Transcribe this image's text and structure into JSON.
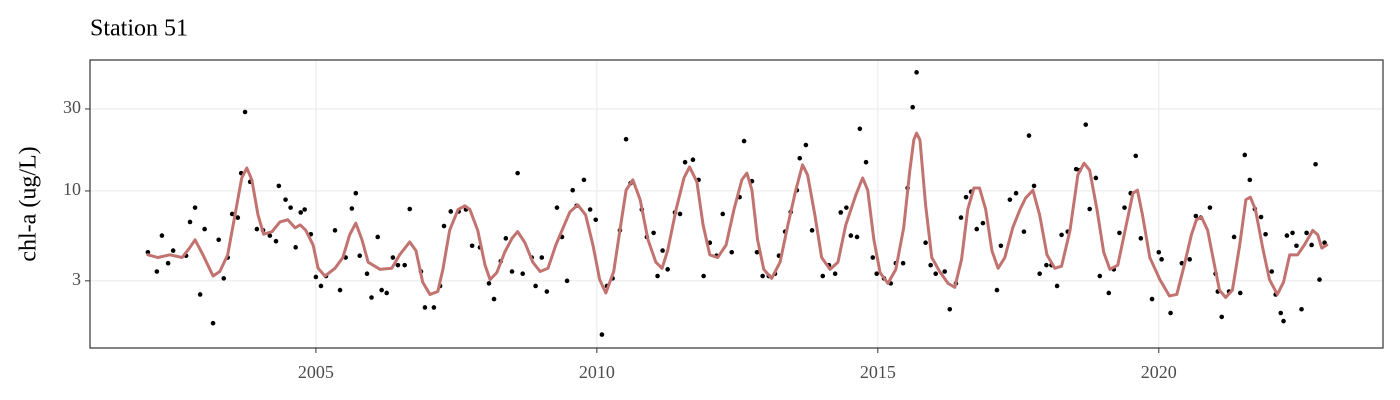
{
  "chart_data": {
    "type": "scatter",
    "title": "Station 51",
    "y_label": "chl-a (ug/L)",
    "xlim": [
      2000.98,
      2023.99
    ],
    "xticks": [
      2005,
      2010,
      2015,
      2020
    ],
    "ylim": [
      1.22,
      57.8
    ],
    "yticks": [
      3,
      10,
      30
    ],
    "y_log": true,
    "grid": true,
    "points": {
      "color": "#000000",
      "x": [
        2002.01,
        2002.17,
        2002.26,
        2002.37,
        2002.46,
        2002.69,
        2002.76,
        2002.85,
        2002.94,
        2003.02,
        2003.17,
        2003.27,
        2003.36,
        2003.43,
        2003.51,
        2003.61,
        2003.67,
        2003.74,
        2003.83,
        2003.95,
        2004.06,
        2004.18,
        2004.29,
        2004.34,
        2004.46,
        2004.55,
        2004.64,
        2004.73,
        2004.8,
        2004.91,
        2005.0,
        2005.09,
        2005.18,
        2005.34,
        2005.43,
        2005.53,
        2005.64,
        2005.71,
        2005.78,
        2005.91,
        2005.99,
        2006.1,
        2006.17,
        2006.26,
        2006.37,
        2006.46,
        2006.58,
        2006.67,
        2006.87,
        2006.94,
        2007.1,
        2007.21,
        2007.28,
        2007.4,
        2007.54,
        2007.67,
        2007.78,
        2007.92,
        2008.08,
        2008.17,
        2008.29,
        2008.38,
        2008.49,
        2008.59,
        2008.68,
        2008.84,
        2008.91,
        2009.02,
        2009.11,
        2009.29,
        2009.38,
        2009.47,
        2009.57,
        2009.64,
        2009.77,
        2009.88,
        2009.98,
        2010.09,
        2010.18,
        2010.28,
        2010.41,
        2010.52,
        2010.6,
        2010.8,
        2010.89,
        2011.01,
        2011.08,
        2011.17,
        2011.26,
        2011.39,
        2011.48,
        2011.57,
        2011.71,
        2011.81,
        2011.9,
        2012.01,
        2012.13,
        2012.24,
        2012.4,
        2012.54,
        2012.62,
        2012.76,
        2012.85,
        2012.95,
        2013.06,
        2013.17,
        2013.24,
        2013.35,
        2013.45,
        2013.56,
        2013.61,
        2013.72,
        2013.83,
        2014.02,
        2014.13,
        2014.24,
        2014.34,
        2014.44,
        2014.52,
        2014.63,
        2014.68,
        2014.79,
        2014.91,
        2014.98,
        2015.11,
        2015.23,
        2015.32,
        2015.45,
        2015.53,
        2015.62,
        2015.69,
        2015.85,
        2015.94,
        2016.03,
        2016.19,
        2016.28,
        2016.39,
        2016.48,
        2016.57,
        2016.66,
        2016.76,
        2016.87,
        2017.12,
        2017.19,
        2017.35,
        2017.46,
        2017.6,
        2017.69,
        2017.78,
        2017.88,
        2018.0,
        2018.09,
        2018.19,
        2018.27,
        2018.38,
        2018.53,
        2018.59,
        2018.7,
        2018.77,
        2018.88,
        2018.95,
        2019.11,
        2019.2,
        2019.3,
        2019.39,
        2019.5,
        2019.59,
        2019.68,
        2019.88,
        2020.0,
        2020.05,
        2020.21,
        2020.41,
        2020.55,
        2020.66,
        2020.75,
        2020.91,
        2021.01,
        2021.05,
        2021.12,
        2021.25,
        2021.34,
        2021.45,
        2021.53,
        2021.62,
        2021.71,
        2021.82,
        2021.9,
        2022.01,
        2022.08,
        2022.17,
        2022.22,
        2022.28,
        2022.38,
        2022.45,
        2022.54,
        2022.63,
        2022.72,
        2022.79,
        2022.86,
        2022.95
      ],
      "values": [
        4.4,
        3.4,
        5.5,
        3.8,
        4.5,
        4.2,
        6.6,
        8.0,
        2.5,
        6.0,
        1.7,
        5.2,
        3.1,
        4.1,
        7.35,
        7.0,
        12.7,
        28.8,
        11.3,
        6.0,
        5.9,
        5.5,
        5.1,
        10.7,
        8.9,
        8.0,
        4.7,
        7.5,
        7.8,
        5.6,
        3.16,
        2.8,
        3.2,
        5.9,
        2.65,
        4.1,
        7.9,
        9.7,
        4.2,
        3.3,
        2.4,
        5.4,
        2.65,
        2.55,
        4.1,
        3.7,
        3.7,
        7.85,
        3.4,
        2.1,
        2.1,
        2.8,
        6.25,
        7.6,
        7.6,
        7.8,
        4.8,
        4.7,
        2.9,
        2.35,
        3.9,
        5.3,
        3.4,
        12.7,
        3.3,
        4.1,
        2.8,
        4.1,
        2.6,
        8.0,
        5.4,
        3.0,
        10.1,
        8.2,
        11.6,
        7.8,
        6.8,
        1.46,
        2.8,
        3.1,
        5.9,
        20,
        11.1,
        7.8,
        5.4,
        5.7,
        3.2,
        4.5,
        3.5,
        7.5,
        7.35,
        14.7,
        15.2,
        11.6,
        3.2,
        5.0,
        4.2,
        7.35,
        4.4,
        9.2,
        19.5,
        11.4,
        4.4,
        3.2,
        3.2,
        3.3,
        4.2,
        5.8,
        7.55,
        10.1,
        15.5,
        18.5,
        5.9,
        3.2,
        3.7,
        3.3,
        7.5,
        8.0,
        5.5,
        5.4,
        23,
        14.7,
        4.1,
        3.3,
        3.1,
        2.9,
        3.8,
        3.8,
        10.4,
        30.7,
        49,
        5.0,
        3.7,
        3.3,
        3.4,
        2.05,
        2.9,
        7.0,
        9.2,
        9.9,
        6.0,
        6.5,
        2.65,
        4.8,
        8.9,
        9.7,
        5.8,
        21,
        10.7,
        3.3,
        3.7,
        3.7,
        2.8,
        5.55,
        5.8,
        13.4,
        13.2,
        24.3,
        7.85,
        11.9,
        3.2,
        2.55,
        3.5,
        5.7,
        8.0,
        9.7,
        16,
        5.3,
        2.35,
        4.4,
        4.0,
        1.95,
        3.8,
        4.0,
        7.15,
        7.0,
        8.0,
        3.3,
        2.6,
        1.85,
        2.6,
        5.4,
        2.55,
        16.2,
        11.6,
        7.85,
        7.05,
        5.6,
        3.4,
        2.5,
        1.95,
        1.75,
        5.5,
        5.7,
        4.8,
        2.05,
        5.7,
        4.85,
        14.3,
        3.05,
        5.0
      ]
    },
    "trend": {
      "color": "#c27370",
      "x": [
        2002.01,
        2002.19,
        2002.4,
        2002.62,
        2002.76,
        2002.85,
        2002.99,
        2003.17,
        2003.29,
        2003.43,
        2003.56,
        2003.68,
        2003.77,
        2003.86,
        2003.97,
        2004.07,
        2004.22,
        2004.36,
        2004.5,
        2004.63,
        2004.72,
        2004.82,
        2004.95,
        2005.04,
        2005.16,
        2005.34,
        2005.48,
        2005.6,
        2005.71,
        2005.82,
        2005.93,
        2006.14,
        2006.35,
        2006.49,
        2006.67,
        2006.78,
        2006.9,
        2007.03,
        2007.17,
        2007.26,
        2007.38,
        2007.53,
        2007.65,
        2007.74,
        2007.88,
        2008.01,
        2008.1,
        2008.22,
        2008.36,
        2008.49,
        2008.59,
        2008.72,
        2008.86,
        2008.99,
        2009.13,
        2009.27,
        2009.38,
        2009.52,
        2009.66,
        2009.8,
        2009.93,
        2010.05,
        2010.16,
        2010.3,
        2010.41,
        2010.52,
        2010.64,
        2010.77,
        2010.91,
        2011.05,
        2011.16,
        2011.26,
        2011.41,
        2011.55,
        2011.65,
        2011.78,
        2011.89,
        2012.01,
        2012.15,
        2012.3,
        2012.44,
        2012.58,
        2012.67,
        2012.76,
        2012.86,
        2012.97,
        2013.11,
        2013.26,
        2013.4,
        2013.54,
        2013.66,
        2013.75,
        2013.88,
        2014.0,
        2014.15,
        2014.29,
        2014.43,
        2014.61,
        2014.73,
        2014.82,
        2014.93,
        2015.04,
        2015.18,
        2015.32,
        2015.46,
        2015.57,
        2015.64,
        2015.69,
        2015.75,
        2015.85,
        2015.96,
        2016.1,
        2016.25,
        2016.37,
        2016.49,
        2016.6,
        2016.71,
        2016.81,
        2016.92,
        2017.03,
        2017.14,
        2017.26,
        2017.4,
        2017.53,
        2017.63,
        2017.76,
        2017.88,
        2018.01,
        2018.15,
        2018.27,
        2018.42,
        2018.56,
        2018.67,
        2018.77,
        2018.9,
        2019.02,
        2019.13,
        2019.27,
        2019.41,
        2019.54,
        2019.62,
        2019.71,
        2019.84,
        2020.02,
        2020.19,
        2020.32,
        2020.44,
        2020.58,
        2020.67,
        2020.76,
        2020.87,
        2020.98,
        2021.08,
        2021.19,
        2021.31,
        2021.44,
        2021.55,
        2021.63,
        2021.72,
        2021.85,
        2021.97,
        2022.11,
        2022.22,
        2022.33,
        2022.47,
        2022.59,
        2022.74,
        2022.83,
        2022.9,
        2022.99
      ],
      "values": [
        4.25,
        4.1,
        4.25,
        4.1,
        4.7,
        5.2,
        4.25,
        3.2,
        3.4,
        4.25,
        7.25,
        11.9,
        13.6,
        11.6,
        7.25,
        5.6,
        5.8,
        6.6,
        6.8,
        6.1,
        6.35,
        5.9,
        4.85,
        3.55,
        3.2,
        3.55,
        4.1,
        5.55,
        6.5,
        5.2,
        3.85,
        3.5,
        3.55,
        4.25,
        5.05,
        4.5,
        2.95,
        2.5,
        2.6,
        3.5,
        5.9,
        7.8,
        8.2,
        7.8,
        5.9,
        3.7,
        3.05,
        3.35,
        4.4,
        5.3,
        5.8,
        5.0,
        3.85,
        3.4,
        3.55,
        4.85,
        5.9,
        7.55,
        8.3,
        7.25,
        4.85,
        3.05,
        2.55,
        3.4,
        5.9,
        10.1,
        11.6,
        8.9,
        5.2,
        3.85,
        3.55,
        4.5,
        7.8,
        11.9,
        13.8,
        11.3,
        6.35,
        4.25,
        4.1,
        4.85,
        7.8,
        11.6,
        12.7,
        10.1,
        5.2,
        3.5,
        3.1,
        3.85,
        6.35,
        10.1,
        14.2,
        12.4,
        7.25,
        4.1,
        3.5,
        3.85,
        6.35,
        9.5,
        11.9,
        10.1,
        5.2,
        3.35,
        2.9,
        3.5,
        6.1,
        13.2,
        19.8,
        21.7,
        19.8,
        8.3,
        4.1,
        3.4,
        2.9,
        2.75,
        4.0,
        7.8,
        10.4,
        10.4,
        7.8,
        4.5,
        3.55,
        4.1,
        6.1,
        7.8,
        9.1,
        10.1,
        7.25,
        4.25,
        3.55,
        3.65,
        5.9,
        12.4,
        14.5,
        13.2,
        7.8,
        4.4,
        3.5,
        3.7,
        6.1,
        9.7,
        10.1,
        7.25,
        4.1,
        3.05,
        2.45,
        2.5,
        3.55,
        5.55,
        6.8,
        7.05,
        5.9,
        3.85,
        2.65,
        2.4,
        2.65,
        4.85,
        8.9,
        9.2,
        7.8,
        4.65,
        3.05,
        2.5,
        2.95,
        4.25,
        4.25,
        4.85,
        5.9,
        5.55,
        4.65,
        4.85
      ]
    }
  }
}
